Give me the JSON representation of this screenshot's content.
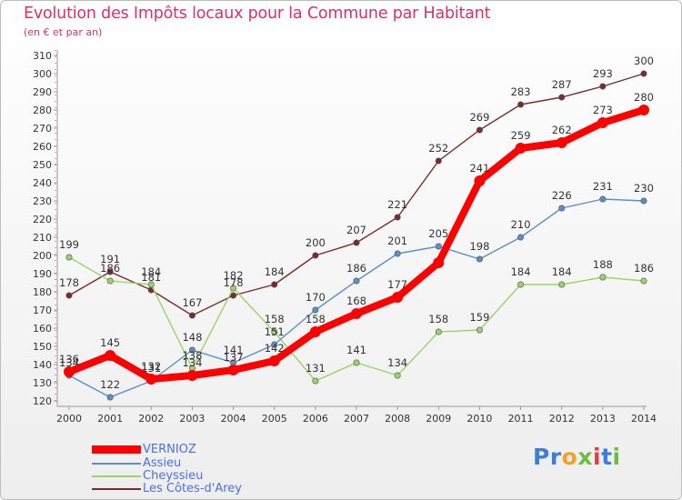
{
  "title": "Evolution des Impôts locaux pour la Commune par Habitant",
  "subtitle": "(en € et par an)",
  "logo_parts": [
    {
      "text": "Pr",
      "color": "#3a7fd9"
    },
    {
      "text": "o",
      "color": "#f3a12b"
    },
    {
      "text": "x",
      "color": "#6abd45"
    },
    {
      "text": "i",
      "color": "#e04040"
    },
    {
      "text": "t",
      "color": "#3a7fd9"
    },
    {
      "text": "i",
      "color": "#6abd45"
    }
  ],
  "chart_data": {
    "type": "line",
    "x": [
      "2000",
      "2001",
      "2002",
      "2003",
      "2004",
      "2005",
      "2006",
      "2007",
      "2008",
      "2009",
      "2010",
      "2011",
      "2012",
      "2013",
      "2014"
    ],
    "ylim": [
      120,
      310
    ],
    "ytick_step": 10,
    "grid": false,
    "legend_position": "bottom-left",
    "series": [
      {
        "name": "Les Côtes-d'Arey",
        "color": "#7a2b2b",
        "values": [
          178,
          191,
          181,
          167,
          178,
          184,
          200,
          207,
          221,
          252,
          269,
          283,
          287,
          293,
          300
        ]
      },
      {
        "name": "Cheyssieu",
        "color": "#9bd36b",
        "values": [
          199,
          186,
          184,
          138,
          182,
          158,
          131,
          141,
          134,
          158,
          159,
          184,
          184,
          188,
          186
        ]
      },
      {
        "name": "Assieu",
        "color": "#5a8fc9",
        "values": [
          134,
          122,
          131,
          148,
          141,
          151,
          170,
          186,
          201,
          205,
          198,
          210,
          226,
          231,
          230
        ]
      },
      {
        "name": "VERNIOZ",
        "color": "#ff0000",
        "values": [
          136,
          145,
          132,
          134,
          137,
          142,
          158,
          168,
          177,
          196,
          241,
          259,
          262,
          273,
          280
        ]
      }
    ],
    "data_labels": {
      "Les Côtes-d'Arey": [
        "178",
        "191",
        "181",
        "167",
        "178",
        "184",
        "200",
        "207",
        "221",
        "252",
        "269",
        "283",
        "287",
        "293",
        "300"
      ],
      "Cheyssieu": [
        "199",
        "186",
        "184",
        "138",
        "182",
        "158",
        "131",
        "141",
        "134",
        "158",
        "159",
        "184",
        "184",
        "188",
        "186"
      ],
      "Assieu": [
        "134",
        "122",
        "131",
        "148",
        "141",
        "151",
        "170",
        "186",
        "201",
        "205",
        "198",
        "210",
        "226",
        "231",
        "230"
      ],
      "VERNIOZ": [
        "136",
        "145",
        "132",
        "134",
        "137",
        "142",
        "158",
        "168",
        "177",
        "",
        "241",
        "259",
        "262",
        "273",
        "280"
      ]
    },
    "legend_order": [
      "VERNIOZ",
      "Assieu",
      "Cheyssieu",
      "Les Côtes-d'Arey"
    ]
  }
}
